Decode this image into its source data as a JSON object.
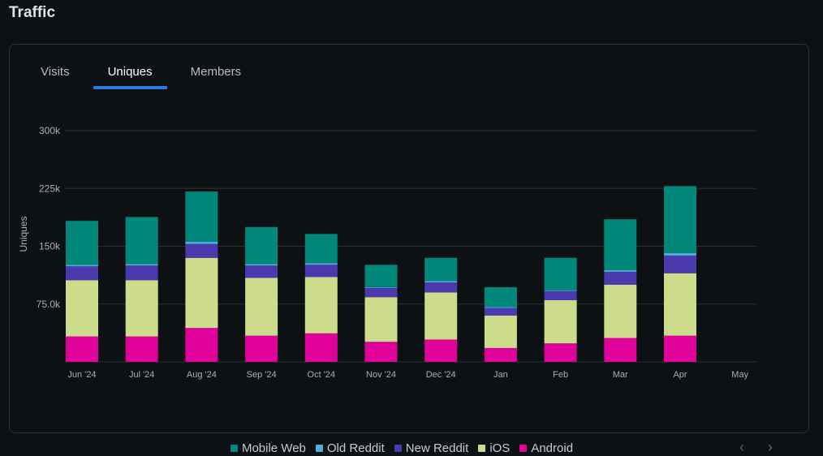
{
  "page": {
    "title": "Traffic"
  },
  "tabs": [
    {
      "label": "Visits",
      "active": false
    },
    {
      "label": "Uniques",
      "active": true
    },
    {
      "label": "Members",
      "active": false
    }
  ],
  "pager": {
    "prev_icon": "chevron-left-icon",
    "next_icon": "chevron-right-icon"
  },
  "colors": {
    "Mobile Web": "#00877a",
    "Old Reddit": "#4fb0e0",
    "New Reddit": "#4a3aad",
    "iOS": "#ccdc8a",
    "Android": "#e0009a",
    "grid": "#2a2f33",
    "tick_text": "#a8b0b5",
    "active_tab": "#2c7be5"
  },
  "chart_data": {
    "type": "bar",
    "stacked": true,
    "categories": [
      "Jun '24",
      "Jul '24",
      "Aug '24",
      "Sep '24",
      "Oct '24",
      "Nov '24",
      "Dec '24",
      "Jan",
      "Feb",
      "Mar",
      "Apr",
      "May"
    ],
    "ylabel": "Uniques",
    "ylim": [
      0,
      300000
    ],
    "yticks": [
      {
        "value": 75000,
        "label": "75.0k"
      },
      {
        "value": 150000,
        "label": "150k"
      },
      {
        "value": 225000,
        "label": "225k"
      },
      {
        "value": 300000,
        "label": "300k"
      }
    ],
    "grid": true,
    "legend_position": "bottom",
    "series": [
      {
        "name": "Android",
        "values": [
          33000,
          33000,
          44000,
          34000,
          37000,
          26000,
          29000,
          18000,
          24000,
          31000,
          34000,
          null
        ]
      },
      {
        "name": "iOS",
        "values": [
          73000,
          73000,
          91000,
          75000,
          73000,
          58000,
          61000,
          42000,
          56000,
          69000,
          81000,
          null
        ]
      },
      {
        "name": "New Reddit",
        "values": [
          18000,
          19000,
          18000,
          16000,
          16000,
          12000,
          13000,
          10000,
          12000,
          17000,
          23000,
          null
        ]
      },
      {
        "name": "Old Reddit",
        "values": [
          2000,
          2000,
          3000,
          2000,
          2000,
          1000,
          2000,
          1000,
          1000,
          2000,
          3000,
          null
        ]
      },
      {
        "name": "Mobile Web",
        "values": [
          57000,
          61000,
          65000,
          48000,
          38000,
          29000,
          30000,
          26000,
          42000,
          66000,
          87000,
          null
        ]
      }
    ],
    "legend": [
      "Mobile Web",
      "Old Reddit",
      "New Reddit",
      "iOS",
      "Android"
    ]
  }
}
